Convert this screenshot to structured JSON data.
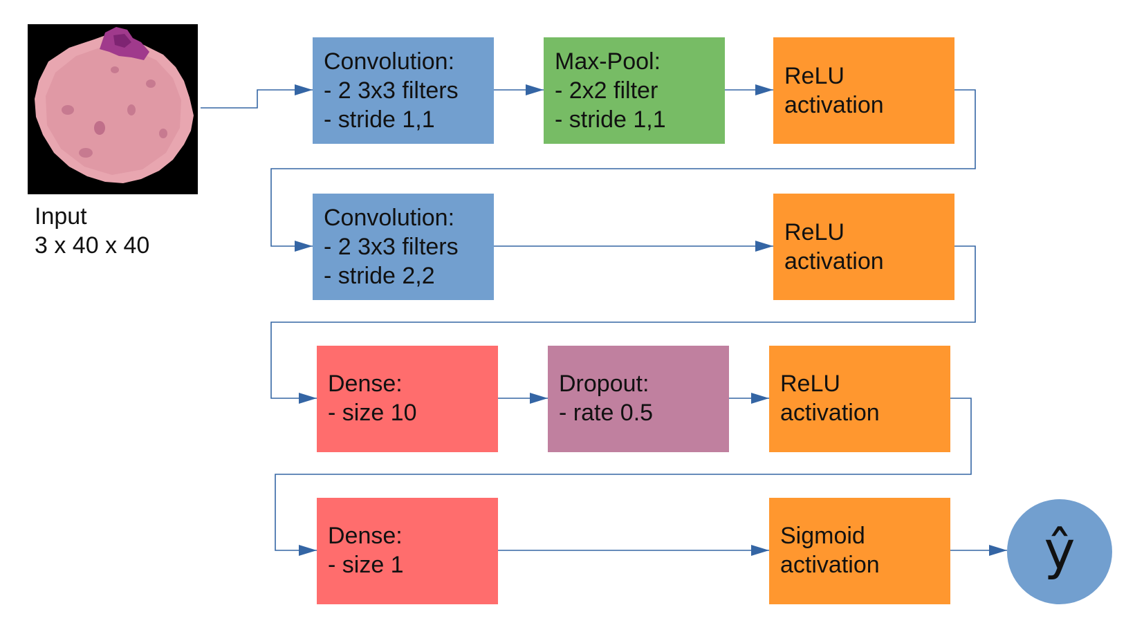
{
  "input": {
    "label": "Input",
    "shape": "3 x 40 x 40"
  },
  "layers": {
    "conv1": {
      "title": "Convolution:",
      "line1": "- 2 3x3 filters",
      "line2": "- stride 1,1"
    },
    "pool1": {
      "title": "Max-Pool:",
      "line1": "- 2x2 filter",
      "line2": "- stride 1,1"
    },
    "relu1": {
      "line1": "ReLU",
      "line2": "activation"
    },
    "conv2": {
      "title": "Convolution:",
      "line1": "- 2 3x3 filters",
      "line2": "- stride 2,2"
    },
    "relu2": {
      "line1": "ReLU",
      "line2": "activation"
    },
    "dense1": {
      "title": "Dense:",
      "line1": "- size 10"
    },
    "dropout": {
      "title": "Dropout:",
      "line1": "- rate 0.5"
    },
    "relu3": {
      "line1": "ReLU",
      "line2": "activation"
    },
    "dense2": {
      "title": "Dense:",
      "line1": "- size 1"
    },
    "sigmoid": {
      "line1": "Sigmoid",
      "line2": "activation"
    }
  },
  "output": {
    "label": "ŷ"
  },
  "colors": {
    "convolution": "#729fcf",
    "max_pool": "#77bc65",
    "activation": "#ff972f",
    "dense": "#ff6d6d",
    "dropout": "#c0809f",
    "output": "#729fcf",
    "connector": "#3465a4"
  }
}
